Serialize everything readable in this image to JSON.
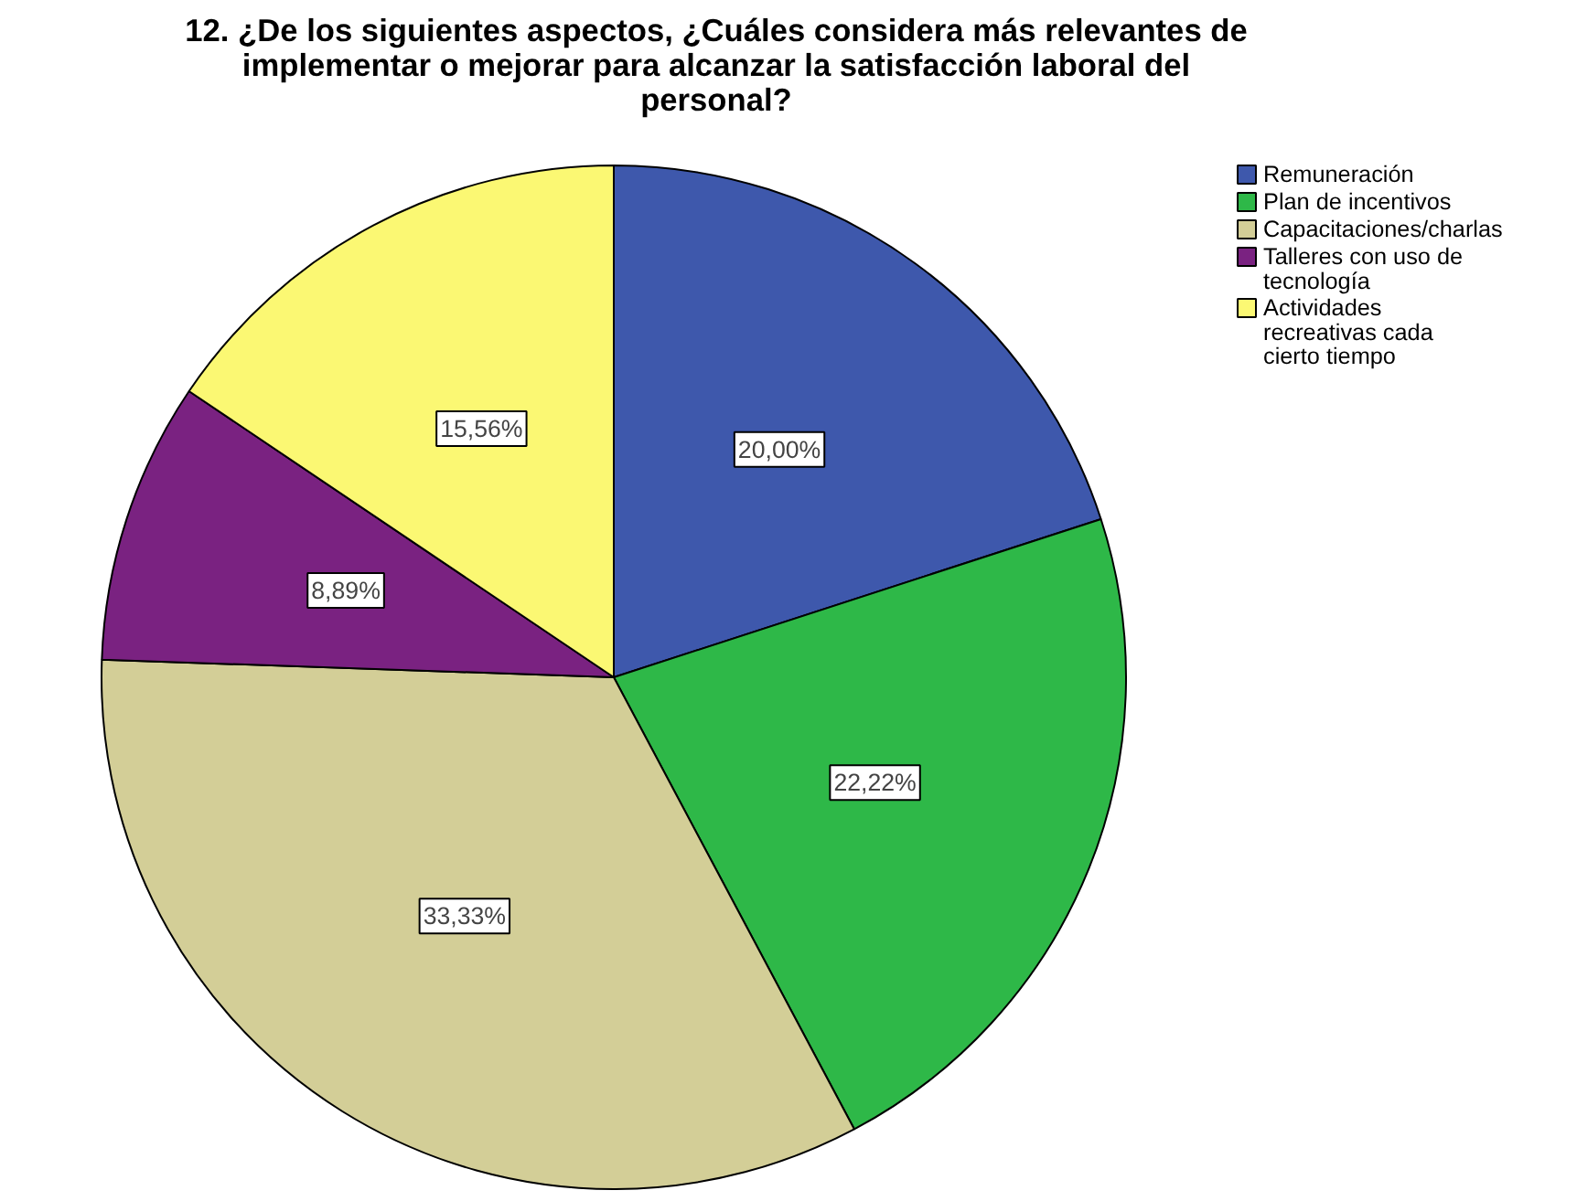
{
  "chart_data": {
    "type": "pie",
    "title": "12. ¿De los siguientes aspectos, ¿Cuáles considera más relevantes de implementar o mejorar para alcanzar la satisfacción laboral del personal?",
    "categories": [
      "Remuneración",
      "Plan de incentivos",
      "Capacitaciones/charlas",
      "Talleres con uso de tecnología",
      "Actividades recreativas cada cierto tiempo"
    ],
    "values": [
      20.0,
      22.22,
      33.33,
      8.89,
      15.56
    ],
    "colors": [
      "#3e58ac",
      "#2eb848",
      "#d3ce97",
      "#7a2281",
      "#fbf873"
    ],
    "value_labels": [
      "20,00%",
      "22,22%",
      "33,33%",
      "8,89%",
      "15,56%"
    ],
    "legend": "top right"
  }
}
